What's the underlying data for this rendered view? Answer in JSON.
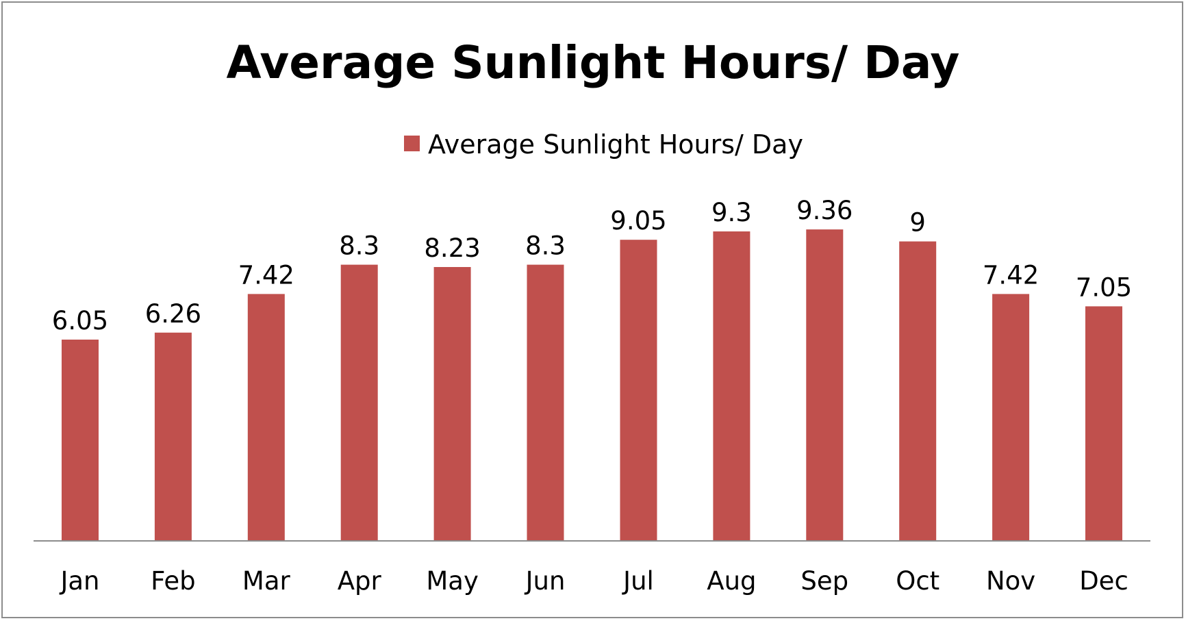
{
  "chart_data": {
    "type": "bar",
    "title": "Average Sunlight Hours/ Day",
    "xlabel": "",
    "ylabel": "",
    "categories": [
      "Jan",
      "Feb",
      "Mar",
      "Apr",
      "May",
      "Jun",
      "Jul",
      "Aug",
      "Sep",
      "Oct",
      "Nov",
      "Dec"
    ],
    "series": [
      {
        "name": "Average Sunlight Hours/ Day",
        "values": [
          6.05,
          6.26,
          7.42,
          8.3,
          8.23,
          8.3,
          9.05,
          9.3,
          9.36,
          9,
          7.42,
          7.05
        ],
        "color": "#c0504d"
      }
    ],
    "ylim": [
      0,
      12
    ],
    "legend_position": "top-center",
    "grid": false,
    "data_labels": true,
    "axis_color": "#8c8c8c"
  }
}
